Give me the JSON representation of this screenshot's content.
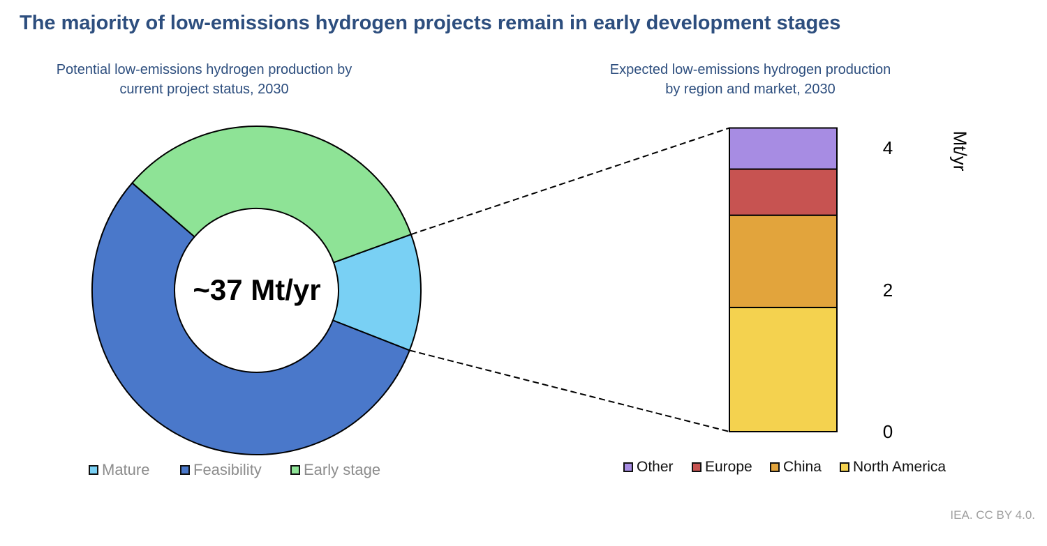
{
  "page": {
    "title": "The majority of low-emissions hydrogen projects remain in early development stages",
    "source_note": "IEA. CC BY 4.0."
  },
  "chart_data": [
    {
      "type": "pie",
      "subtype": "donut",
      "title": "Potential low-emissions hydrogen production by current project status, 2030",
      "title_lines": [
        "Potential low-emissions hydrogen production by",
        "current project status, 2030"
      ],
      "center_label": "~37 Mt/yr",
      "total_mt_per_yr": 37,
      "unit": "Mt/yr",
      "start_angle_deg": -21.4,
      "slices": [
        {
          "label": "Mature",
          "value": 4.25,
          "color": "#79d0f4"
        },
        {
          "label": "Feasibility",
          "value": 20.5,
          "color": "#4a78ca"
        },
        {
          "label": "Early stage",
          "value": 12.25,
          "color": "#8ee396"
        }
      ],
      "legend_position": "bottom",
      "outline_color": "#000000"
    },
    {
      "type": "bar",
      "subtype": "stacked-single-column",
      "title": "Expected low-emissions hydrogen production by region and market, 2030",
      "title_lines": [
        "Expected low-emissions hydrogen production",
        "by region and market, 2030"
      ],
      "ylabel": "Mt/yr",
      "yticks": [
        0,
        2,
        4
      ],
      "ylim": [
        0,
        4.4
      ],
      "grid": false,
      "axis_side": "right",
      "series": [
        {
          "name": "Other",
          "value": 0.58,
          "color": "#a78ce3"
        },
        {
          "name": "Europe",
          "value": 0.65,
          "color": "#c75351"
        },
        {
          "name": "China",
          "value": 1.3,
          "color": "#e2a43c"
        },
        {
          "name": "North America",
          "value": 1.75,
          "color": "#f4d24f"
        }
      ],
      "stack_bottom_to_top": [
        "North America",
        "China",
        "Europe",
        "Other"
      ],
      "legend_position": "bottom",
      "outline_color": "#000000"
    }
  ],
  "connector": {
    "style": "dashed",
    "color": "#000000"
  }
}
